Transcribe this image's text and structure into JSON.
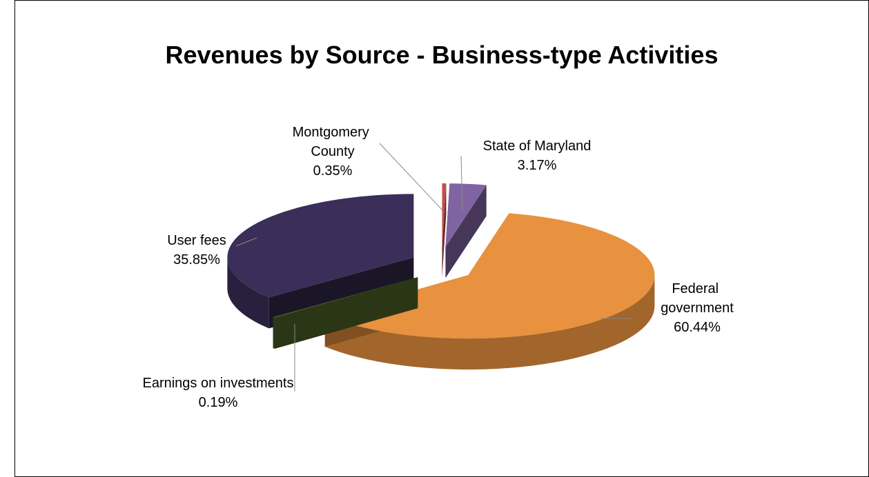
{
  "chart_data": {
    "type": "pie",
    "title": "Revenues by Source - Business-type Activities",
    "categories": [
      "Montgomery County",
      "State of Maryland",
      "Federal government",
      "Earnings on investments",
      "User fees"
    ],
    "values": [
      0.35,
      3.17,
      60.44,
      0.19,
      35.85
    ],
    "value_labels": [
      "0.35%",
      "3.17%",
      "60.44%",
      "0.19%",
      "35.85%"
    ],
    "colors": [
      "#c0504d",
      "#8064a2",
      "#e8913f",
      "#4f6228",
      "#3b2e58"
    ]
  }
}
